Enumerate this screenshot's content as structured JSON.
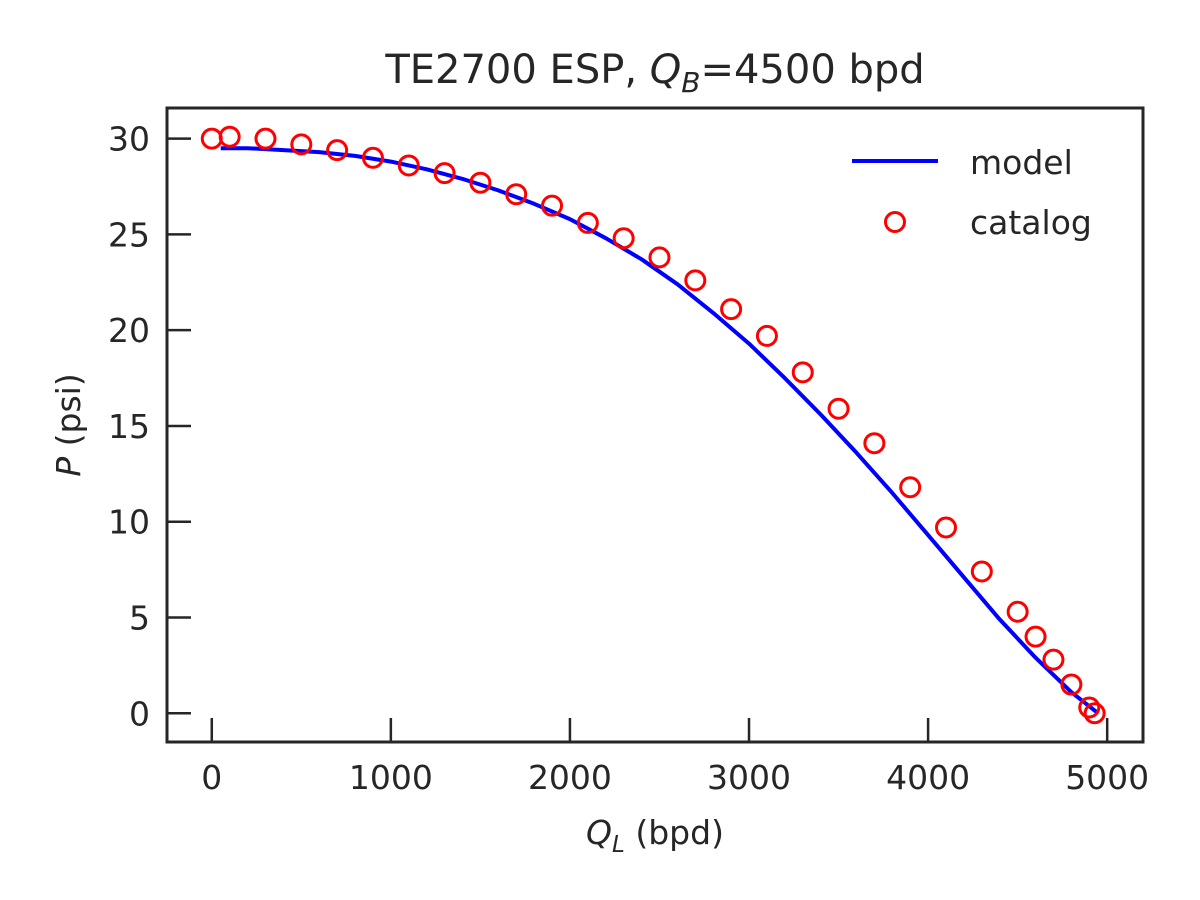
{
  "chart_data": {
    "type": "line",
    "title": {
      "main": "TE2700 ESP, ",
      "var": "Q",
      "sub": "B",
      "rest": "=4500 bpd"
    },
    "xlabel": {
      "var": "Q",
      "sub": "L",
      "rest": " (bpd)"
    },
    "ylabel": {
      "var": "P",
      "rest": " (psi)"
    },
    "xlim": [
      -250,
      5200
    ],
    "ylim": [
      -1.5,
      31.6
    ],
    "xticks": [
      0,
      1000,
      2000,
      3000,
      4000,
      5000
    ],
    "yticks": [
      0,
      5,
      10,
      15,
      20,
      25,
      30
    ],
    "grid": false,
    "legend_position": "top-right",
    "series": [
      {
        "name": "model",
        "style": "line",
        "color": "#0000ff",
        "x": [
          50,
          200,
          400,
          600,
          800,
          1000,
          1200,
          1400,
          1600,
          1800,
          2000,
          2200,
          2400,
          2600,
          2800,
          3000,
          3200,
          3400,
          3600,
          3800,
          4000,
          4200,
          4400,
          4600,
          4800,
          4950
        ],
        "y": [
          29.5,
          29.5,
          29.4,
          29.3,
          29.1,
          28.8,
          28.4,
          27.9,
          27.3,
          26.6,
          25.8,
          24.8,
          23.7,
          22.4,
          20.9,
          19.3,
          17.5,
          15.6,
          13.6,
          11.5,
          9.3,
          7.1,
          4.9,
          2.9,
          1.1,
          0.0
        ]
      },
      {
        "name": "catalog",
        "style": "markers",
        "color": "#ff0000",
        "x": [
          0,
          100,
          300,
          500,
          700,
          900,
          1100,
          1300,
          1500,
          1700,
          1900,
          2100,
          2300,
          2500,
          2700,
          2900,
          3100,
          3300,
          3500,
          3700,
          3900,
          4100,
          4300,
          4500,
          4600,
          4700,
          4800,
          4900,
          4930
        ],
        "y": [
          30.0,
          30.1,
          30.0,
          29.7,
          29.4,
          29.0,
          28.6,
          28.2,
          27.7,
          27.1,
          26.5,
          25.6,
          24.8,
          23.8,
          22.6,
          21.1,
          19.7,
          17.8,
          15.9,
          14.1,
          11.8,
          9.7,
          7.4,
          5.3,
          4.0,
          2.8,
          1.5,
          0.3,
          0.0
        ]
      }
    ]
  }
}
